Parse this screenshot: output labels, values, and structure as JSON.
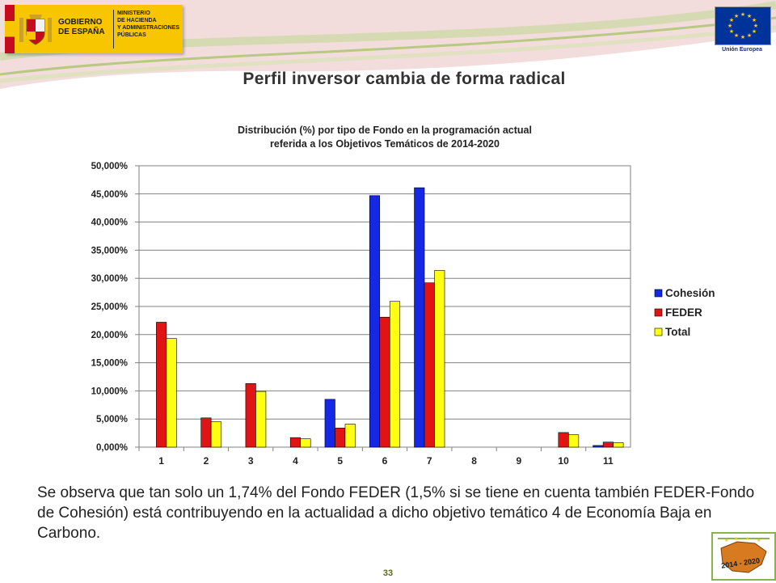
{
  "header": {
    "gov_lines": [
      "GOBIERNO",
      "DE ESPAÑA"
    ],
    "ministry_lines": [
      "MINISTERIO",
      "DE HACIENDA",
      "Y ADMINISTRACIONES",
      "PÚBLICAS"
    ],
    "eu_label": "Unión Europea",
    "badge_text": "2014 - 2020"
  },
  "slide": {
    "title": "Perfil inversor cambia de forma radical",
    "body": "Se observa que tan solo un 1,74% del Fondo FEDER (1,5% si se tiene en cuenta también FEDER-Fondo de Cohesión) está contribuyendo en la actualidad a dicho objetivo temático 4 de Economía Baja en Carbono.",
    "page_number": "33"
  },
  "colors": {
    "cohesion": "#1428e6",
    "feder": "#e01414",
    "total": "#ffff14",
    "accent_green": "#8ab34b"
  },
  "chart_data": {
    "type": "bar",
    "title_lines": [
      "Distribución (%) por tipo de Fondo en la programación actual",
      "referida a los Objetivos Temáticos de 2014-2020"
    ],
    "categories": [
      "1",
      "2",
      "3",
      "4",
      "5",
      "6",
      "7",
      "8",
      "9",
      "10",
      "11"
    ],
    "series": [
      {
        "name": "Cohesión",
        "values": [
          0,
          0,
          0,
          0,
          8.5,
          44.7,
          46.1,
          0,
          0,
          0,
          0.3
        ]
      },
      {
        "name": "FEDER",
        "values": [
          22.2,
          5.2,
          11.3,
          1.7,
          3.4,
          23.1,
          29.2,
          0,
          0,
          2.6,
          0.9
        ]
      },
      {
        "name": "Total",
        "values": [
          19.3,
          4.5,
          9.9,
          1.5,
          4.1,
          25.9,
          31.4,
          0,
          0,
          2.2,
          0.8
        ]
      }
    ],
    "y_ticks": [
      "0,000%",
      "5,000%",
      "10,000%",
      "15,000%",
      "20,000%",
      "25,000%",
      "30,000%",
      "35,000%",
      "40,000%",
      "45,000%",
      "50,000%"
    ],
    "ylim": [
      0,
      50
    ],
    "grid": true,
    "legend_position": "right"
  }
}
